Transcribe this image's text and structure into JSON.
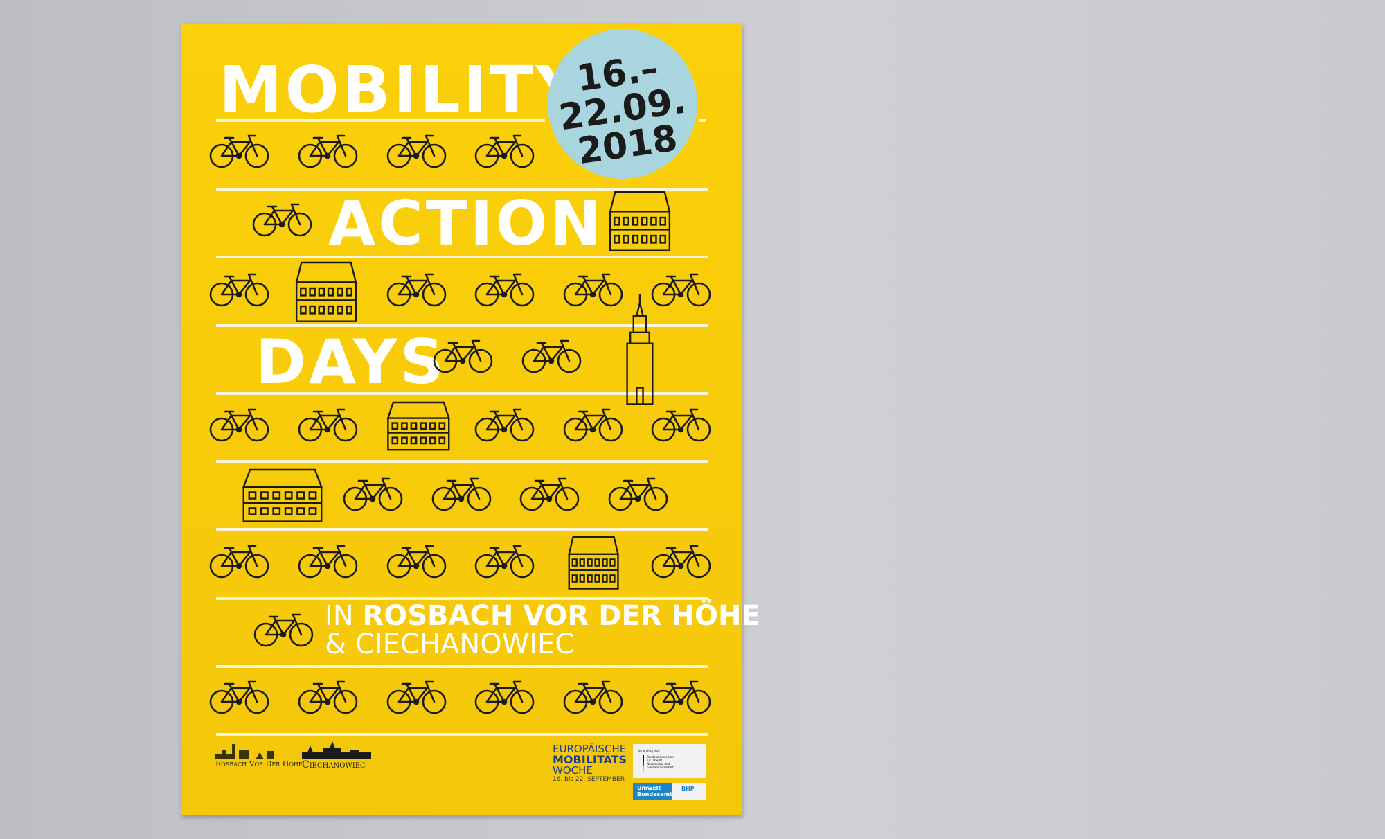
{
  "poster": {
    "title_words": [
      "MOBILITY",
      "ACTION",
      "DAYS"
    ],
    "date": {
      "line1": "16.–",
      "line2": "22.09.",
      "line3": "2018"
    },
    "location": {
      "prefix": "IN",
      "place1": "ROSBACH VOR DER HÖHE",
      "place2": "& CIECHANOWIEC"
    },
    "colors": {
      "background": "#f9cd0a",
      "circle": "#a9d6de",
      "text": "#ffffff",
      "icons": "#1b1b1b"
    },
    "icons": [
      "bicycle-icon",
      "building-icon",
      "church-tower-icon"
    ]
  },
  "footer": {
    "logo_rosbach": "Rosbach Vor Der Höhe",
    "logo_ciechanowiec": "Ciechanowiec",
    "emw": {
      "line1": "EUROPÄISCHE",
      "line2": "MOBILITÄTS",
      "line3": "WOCHE",
      "dates": "16. bis 22. SEPTEMBER"
    },
    "ministry": {
      "caption": "Im Auftrag des:",
      "name": "Bundesministerium für Umwelt, Naturschutz und nukleare Sicherheit"
    },
    "uba": "Umwelt Bundesamt",
    "bhp": "BHP"
  }
}
